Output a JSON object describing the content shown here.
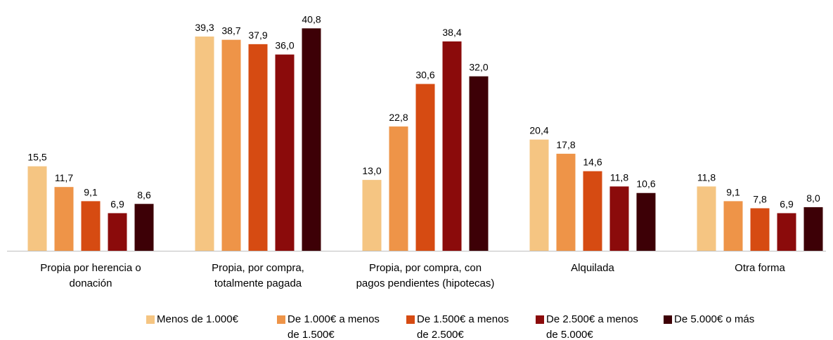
{
  "chart_data": {
    "type": "bar",
    "categories": [
      "Propia por herencia o donación",
      "Propia, por compra, totalmente pagada",
      "Propia, por compra, con pagos pendientes (hipotecas)",
      "Alquilada",
      "Otra forma"
    ],
    "series": [
      {
        "name": "Menos de 1.000€",
        "color": "#F5C582",
        "values": [
          15.5,
          39.3,
          13.0,
          20.4,
          11.8
        ],
        "value_labels": [
          "15,5",
          "39,3",
          "13,0",
          "20,4",
          "11,8"
        ]
      },
      {
        "name": "De 1.000€ a menos de 1.500€",
        "color": "#EE9448",
        "values": [
          11.7,
          38.7,
          22.8,
          17.8,
          9.1
        ],
        "value_labels": [
          "11,7",
          "38,7",
          "22,8",
          "17,8",
          "9,1"
        ]
      },
      {
        "name": "De 1.500€ a menos de 2.500€",
        "color": "#D64B12",
        "values": [
          9.1,
          37.9,
          30.6,
          14.6,
          7.8
        ],
        "value_labels": [
          "9,1",
          "37,9",
          "30,6",
          "14,6",
          "7,8"
        ]
      },
      {
        "name": "De 2.500€ a menos de 5.000€",
        "color": "#8B0B0B",
        "values": [
          6.9,
          36.0,
          38.4,
          11.8,
          6.9
        ],
        "value_labels": [
          "6,9",
          "36,0",
          "38,4",
          "11,8",
          "6,9"
        ]
      },
      {
        "name": "De 5.000€ o más",
        "color": "#3D0006",
        "values": [
          8.6,
          40.8,
          32.0,
          10.6,
          8.0
        ],
        "value_labels": [
          "8,6",
          "40,8",
          "32,0",
          "10,6",
          "8,0"
        ]
      }
    ],
    "ylim": [
      0,
      46
    ]
  }
}
